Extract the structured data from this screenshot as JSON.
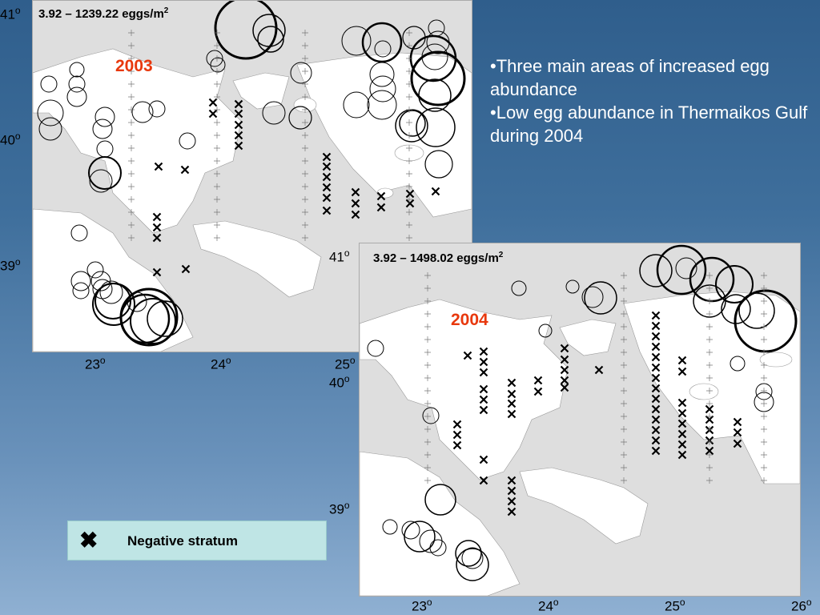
{
  "map_2003": {
    "range_text": "3.92 – 1239.22 eggs/m",
    "range_sup": "2",
    "year": "2003",
    "lat_labels": [
      {
        "value": "41",
        "deg": "o"
      },
      {
        "value": "40",
        "deg": "o"
      },
      {
        "value": "39",
        "deg": "o"
      }
    ],
    "lon_labels": [
      {
        "value": "23",
        "deg": "o"
      },
      {
        "value": "24",
        "deg": "o"
      },
      {
        "value": "25",
        "deg": "o"
      }
    ]
  },
  "map_2004": {
    "range_text": "3.92 – 1498.02 eggs/m",
    "range_sup": "2",
    "year": "2004",
    "lat_labels": [
      {
        "value": "41",
        "deg": "o"
      },
      {
        "value": "40",
        "deg": "o"
      },
      {
        "value": "39",
        "deg": "o"
      }
    ],
    "lon_labels": [
      {
        "value": "23",
        "deg": "o"
      },
      {
        "value": "24",
        "deg": "o"
      },
      {
        "value": "25",
        "deg": "o"
      },
      {
        "value": "26",
        "deg": "o"
      }
    ]
  },
  "bullets": [
    "•Three main areas of increased egg abundance",
    "•Low egg abundance in Thermaikos Gulf during 2004"
  ],
  "legend": {
    "symbol": "✖",
    "label": "Negative stratum"
  },
  "colors": {
    "year": "#e8380d",
    "background_top": "#2f5e8c",
    "legend_bg": "#bfe5e5"
  }
}
